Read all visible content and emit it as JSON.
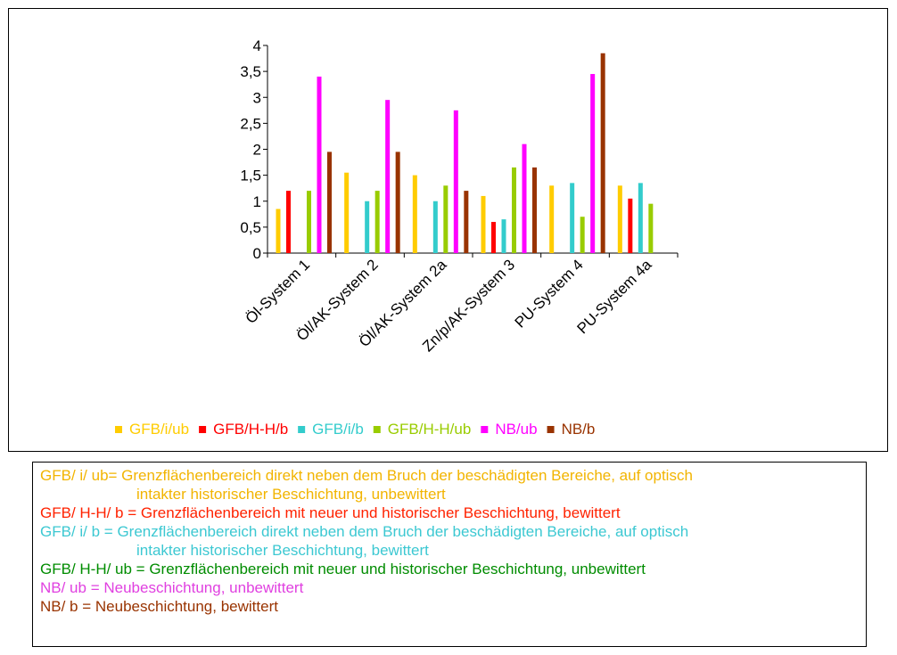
{
  "chart_data": {
    "type": "bar",
    "categories": [
      "Öl-System 1",
      "Öl/AK-System 2",
      "Öl/AK-System 2a",
      "Zn/p/AK-System 3",
      "PU-System 4",
      "PU-System 4a"
    ],
    "series": [
      {
        "name": "GFB/i/ub",
        "color": "#FFCC00",
        "values": [
          0.85,
          1.55,
          1.5,
          1.1,
          1.3,
          1.3
        ]
      },
      {
        "name": "GFB/H-H/b",
        "color": "#FF0000",
        "values": [
          1.2,
          null,
          null,
          0.6,
          null,
          1.05
        ]
      },
      {
        "name": "GFB/i/b",
        "color": "#33CCCC",
        "values": [
          null,
          1.0,
          1.0,
          0.65,
          1.35,
          1.35
        ]
      },
      {
        "name": "GFB/H-H/ub",
        "color": "#99CC00",
        "values": [
          1.2,
          1.2,
          1.3,
          1.65,
          0.7,
          0.95
        ]
      },
      {
        "name": "NB/ub",
        "color": "#FF00FF",
        "values": [
          3.4,
          2.95,
          2.75,
          2.1,
          3.45,
          null
        ]
      },
      {
        "name": "NB/b",
        "color": "#993300",
        "values": [
          1.95,
          1.95,
          1.2,
          1.65,
          3.85,
          null
        ]
      }
    ],
    "y_ticks": [
      "0",
      "0,5",
      "1",
      "1,5",
      "2",
      "2,5",
      "3",
      "3,5",
      "4"
    ],
    "ylim": [
      0,
      4
    ],
    "legend_position": "bottom",
    "grid": false
  },
  "definitions": [
    {
      "lead": "GFB/ i/ ub= Grenzflächenbereich direkt neben dem Bruch der beschädigten Bereiche, auf optisch",
      "cont": "intakter historischer Beschichtung, unbewittert",
      "color": "#F2B400"
    },
    {
      "lead": "GFB/ H-H/ b = Grenzflächenbereich mit neuer und historischer Beschichtung, bewittert",
      "cont": "",
      "color": "#FF2200"
    },
    {
      "lead": "GFB/ i/ b = Grenzflächenbereich direkt neben dem Bruch der beschädigten Bereiche, auf optisch",
      "cont": "intakter historischer Beschichtung, bewittert",
      "color": "#3CC8D2"
    },
    {
      "lead": "GFB/ H-H/ ub = Grenzflächenbereich mit neuer und historischer Beschichtung, unbewittert",
      "cont": "",
      "color": "#008C00"
    },
    {
      "lead": "NB/ ub = Neubeschichtung, unbewittert",
      "cont": "",
      "color": "#E040E0"
    },
    {
      "lead": "NB/ b = Neubeschichtung, bewittert",
      "cont": "",
      "color": "#993300"
    }
  ]
}
